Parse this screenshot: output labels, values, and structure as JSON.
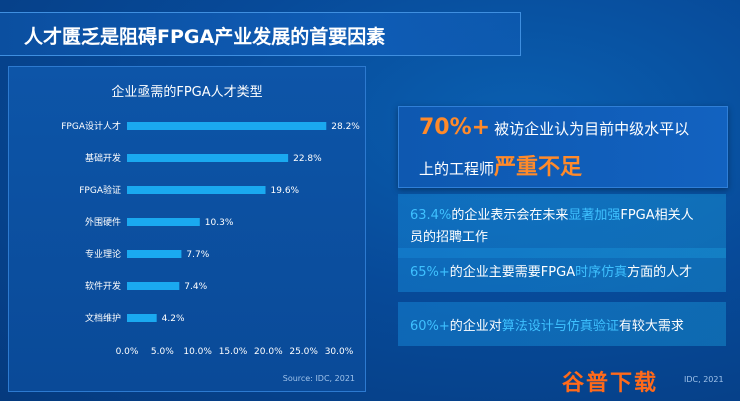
{
  "header": {
    "title": "人才匮乏是阻碍FPGA产业发展的首要因素"
  },
  "chart_data": {
    "type": "bar",
    "orientation": "horizontal",
    "title": "企业亟需的FPGA人才类型",
    "categories": [
      "FPGA设计人才",
      "基础开发",
      "FPGA验证",
      "外围硬件",
      "专业理论",
      "软件开发",
      "文档维护"
    ],
    "values": [
      28.2,
      22.8,
      19.6,
      10.3,
      7.7,
      7.4,
      4.2
    ],
    "value_labels": [
      "28.2%",
      "22.8%",
      "19.6%",
      "10.3%",
      "7.7%",
      "7.4%",
      "4.2%"
    ],
    "xlim": [
      0,
      30
    ],
    "x_ticks": [
      "0.0%",
      "5.0%",
      "10.0%",
      "15.0%",
      "20.0%",
      "25.0%",
      "30.0%"
    ],
    "bar_color": "#1aa9f0",
    "grid": false,
    "source": "Source: IDC, 2021"
  },
  "highlights": {
    "main": {
      "pct": "70%+",
      "line1_rest": "被访企业认为目前中级水平以",
      "line2_plain": "上的工程师",
      "line2_strong": "严重不足"
    },
    "card1": {
      "pct": "63.4%",
      "a": "的企业表示会在未来",
      "hl": "显著加强",
      "b": "FPGA相关人",
      "line2": "员的招聘工作"
    },
    "card2": {
      "pct": "65%+",
      "a": "的企业主要需要FPGA",
      "hl": "时序仿真",
      "b": "方面的人才"
    },
    "card3": {
      "pct": "60%+",
      "a": "的企业对",
      "hl": "算法设计与仿真验证",
      "b": "有较大需求"
    }
  },
  "watermark": {
    "text": "谷普下载",
    "source": "IDC, 2021"
  },
  "colors": {
    "accent": "#ff8a2a",
    "highlight": "#3ec1ff",
    "bar": "#1aa9f0"
  }
}
